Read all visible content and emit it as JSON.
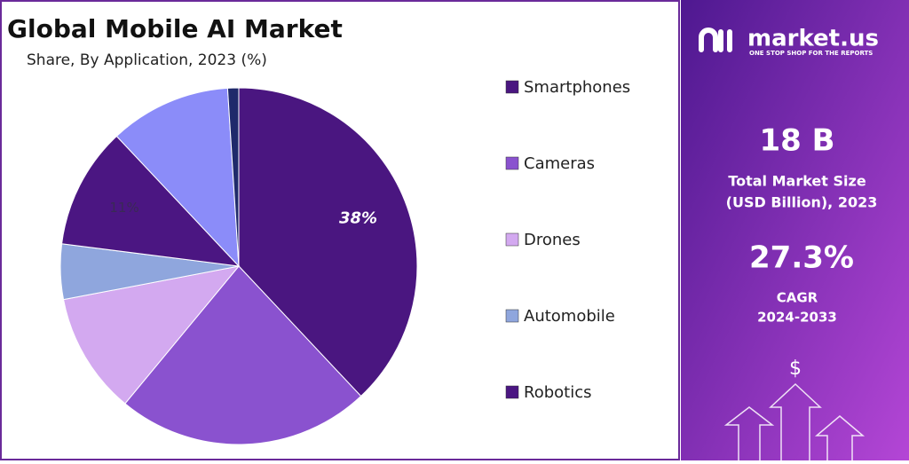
{
  "chart_data": {
    "type": "pie",
    "title": "Global Mobile AI Market",
    "subtitle": "Share, By Application, 2023 (%)",
    "categories": [
      "Smartphones",
      "Cameras",
      "Drones",
      "Automobile",
      "Robotics",
      null,
      null
    ],
    "values": [
      38,
      23,
      11,
      5,
      11,
      11,
      1
    ],
    "value_labels": [
      "38%",
      null,
      null,
      null,
      "11%",
      null,
      null
    ],
    "colors": [
      "#4a1680",
      "#8a52cf",
      "#d3a9f0",
      "#8fa6dd",
      "#4b1682",
      "#8b8cf9",
      "#1f2a6b"
    ],
    "legend": "right"
  },
  "sidebar": {
    "brand": "market.us",
    "tagline": "ONE STOP SHOP FOR THE REPORTS",
    "market_size": "18 B",
    "market_size_label": [
      "Total Market Size",
      "(USD Billion), 2023"
    ],
    "cagr": "27.3%",
    "cagr_label": [
      "CAGR",
      "2024-2033"
    ],
    "icon": "$"
  }
}
